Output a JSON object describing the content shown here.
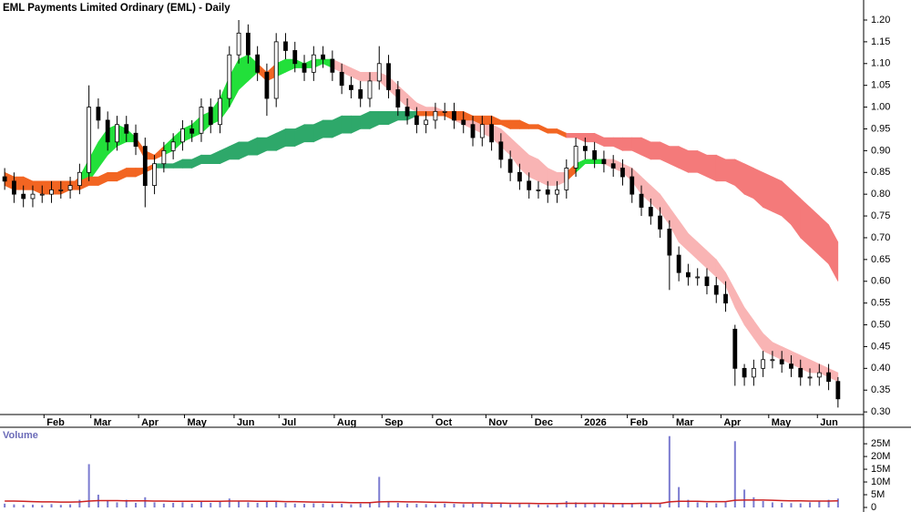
{
  "chart_data": {
    "type": "candlestick",
    "title": "EML Payments Limited Ordinary (EML) - Daily",
    "xlim": [
      -0.5,
      89.5
    ],
    "xticks": [
      {
        "value": 4.2,
        "label": "Feb"
      },
      {
        "value": 9.2,
        "label": "Mar"
      },
      {
        "value": 14.3,
        "label": "Apr"
      },
      {
        "value": 19.2,
        "label": "May"
      },
      {
        "value": 24.5,
        "label": "Jun"
      },
      {
        "value": 29.3,
        "label": "Jul"
      },
      {
        "value": 35.2,
        "label": "Aug"
      },
      {
        "value": 40.3,
        "label": "Sep"
      },
      {
        "value": 45.7,
        "label": "Oct"
      },
      {
        "value": 51.4,
        "label": "Nov"
      },
      {
        "value": 56.3,
        "label": "Dec"
      },
      {
        "value": 61.6,
        "label": "2026"
      },
      {
        "value": 66.5,
        "label": "Feb"
      },
      {
        "value": 71.4,
        "label": "Mar"
      },
      {
        "value": 76.5,
        "label": "Apr"
      },
      {
        "value": 81.6,
        "label": "May"
      },
      {
        "value": 86.8,
        "label": "Jun"
      }
    ],
    "ylim": [
      0.294,
      1.246
    ],
    "yticks": [
      {
        "value": 0.3,
        "label": "0.30"
      },
      {
        "value": 0.35,
        "label": "0.35"
      },
      {
        "value": 0.4,
        "label": "0.40"
      },
      {
        "value": 0.45,
        "label": "0.45"
      },
      {
        "value": 0.5,
        "label": "0.50"
      },
      {
        "value": 0.55,
        "label": "0.55"
      },
      {
        "value": 0.6,
        "label": "0.60"
      },
      {
        "value": 0.65,
        "label": "0.65"
      },
      {
        "value": 0.7,
        "label": "0.70"
      },
      {
        "value": 0.75,
        "label": "0.75"
      },
      {
        "value": 0.8,
        "label": "0.80"
      },
      {
        "value": 0.85,
        "label": "0.85"
      },
      {
        "value": 0.9,
        "label": "0.90"
      },
      {
        "value": 0.95,
        "label": "0.95"
      },
      {
        "value": 1.0,
        "label": "1.00"
      },
      {
        "value": 1.05,
        "label": "1.05"
      },
      {
        "value": 1.1,
        "label": "1.10"
      },
      {
        "value": 1.15,
        "label": "1.15"
      },
      {
        "value": 1.2,
        "label": "1.20"
      }
    ],
    "up_color": "#ffffff",
    "down_color": "#000000",
    "open": [
      0.84,
      0.83,
      0.8,
      0.79,
      0.8,
      0.8,
      0.81,
      0.81,
      0.82,
      0.85,
      1.0,
      0.97,
      0.92,
      0.96,
      0.94,
      0.91,
      0.82,
      0.87,
      0.9,
      0.92,
      0.95,
      0.94,
      1.0,
      0.96,
      1.02,
      1.12,
      1.17,
      1.12,
      1.08,
      1.02,
      1.15,
      1.13,
      1.1,
      1.08,
      1.12,
      1.11,
      1.08,
      1.05,
      1.04,
      1.02,
      1.06,
      1.1,
      1.04,
      1.0,
      0.98,
      0.96,
      0.97,
      0.99,
      0.99,
      0.97,
      0.96,
      0.93,
      0.96,
      0.92,
      0.88,
      0.85,
      0.83,
      0.81,
      0.81,
      0.8,
      0.81,
      0.86,
      0.91,
      0.9,
      0.88,
      0.87,
      0.86,
      0.84,
      0.8,
      0.77,
      0.75,
      0.72,
      0.66,
      0.62,
      0.61,
      0.61,
      0.59,
      0.57,
      0.49,
      0.4,
      0.38,
      0.4,
      0.42,
      0.42,
      0.41,
      0.4,
      0.38,
      0.38,
      0.39,
      0.37
    ],
    "high": [
      0.86,
      0.85,
      0.82,
      0.82,
      0.82,
      0.83,
      0.83,
      0.84,
      0.87,
      1.05,
      1.02,
      0.99,
      0.98,
      0.98,
      0.96,
      0.93,
      0.89,
      0.92,
      0.94,
      0.97,
      0.97,
      1.02,
      1.02,
      1.04,
      1.14,
      1.2,
      1.19,
      1.14,
      1.1,
      1.17,
      1.17,
      1.15,
      1.12,
      1.14,
      1.14,
      1.13,
      1.1,
      1.07,
      1.06,
      1.08,
      1.14,
      1.12,
      1.06,
      1.02,
      1.0,
      0.99,
      1.01,
      1.01,
      1.01,
      0.99,
      0.98,
      0.98,
      0.98,
      0.94,
      0.9,
      0.87,
      0.85,
      0.83,
      0.83,
      0.83,
      0.88,
      0.93,
      0.93,
      0.92,
      0.9,
      0.89,
      0.88,
      0.86,
      0.82,
      0.79,
      0.77,
      0.74,
      0.68,
      0.64,
      0.63,
      0.63,
      0.61,
      0.6,
      0.5,
      0.41,
      0.42,
      0.44,
      0.44,
      0.44,
      0.43,
      0.42,
      0.4,
      0.41,
      0.41,
      0.38
    ],
    "low": [
      0.81,
      0.78,
      0.77,
      0.77,
      0.78,
      0.78,
      0.79,
      0.79,
      0.8,
      0.83,
      0.95,
      0.9,
      0.9,
      0.92,
      0.89,
      0.77,
      0.8,
      0.85,
      0.88,
      0.9,
      0.92,
      0.92,
      0.94,
      0.94,
      1.0,
      1.1,
      1.1,
      1.06,
      0.98,
      1.0,
      1.11,
      1.08,
      1.06,
      1.06,
      1.09,
      1.06,
      1.03,
      1.02,
      1.0,
      1.0,
      1.04,
      1.02,
      0.98,
      0.96,
      0.94,
      0.94,
      0.95,
      0.97,
      0.95,
      0.94,
      0.91,
      0.91,
      0.9,
      0.86,
      0.83,
      0.81,
      0.79,
      0.79,
      0.78,
      0.78,
      0.79,
      0.84,
      0.88,
      0.86,
      0.85,
      0.84,
      0.82,
      0.78,
      0.75,
      0.73,
      0.7,
      0.58,
      0.6,
      0.59,
      0.59,
      0.57,
      0.55,
      0.53,
      0.36,
      0.36,
      0.36,
      0.38,
      0.4,
      0.39,
      0.38,
      0.36,
      0.36,
      0.36,
      0.35,
      0.31
    ],
    "close": [
      0.83,
      0.8,
      0.79,
      0.8,
      0.8,
      0.81,
      0.81,
      0.82,
      0.85,
      1.0,
      0.97,
      0.92,
      0.96,
      0.94,
      0.91,
      0.82,
      0.87,
      0.9,
      0.92,
      0.95,
      0.94,
      1.0,
      0.96,
      1.02,
      1.12,
      1.17,
      1.12,
      1.08,
      1.02,
      1.15,
      1.13,
      1.1,
      1.08,
      1.12,
      1.11,
      1.08,
      1.05,
      1.04,
      1.02,
      1.06,
      1.1,
      1.04,
      1.0,
      0.98,
      0.96,
      0.97,
      0.99,
      0.99,
      0.97,
      0.96,
      0.93,
      0.96,
      0.92,
      0.88,
      0.85,
      0.83,
      0.81,
      0.81,
      0.8,
      0.81,
      0.86,
      0.91,
      0.9,
      0.88,
      0.87,
      0.86,
      0.84,
      0.8,
      0.77,
      0.75,
      0.72,
      0.66,
      0.62,
      0.61,
      0.61,
      0.59,
      0.57,
      0.55,
      0.4,
      0.38,
      0.4,
      0.42,
      0.42,
      0.41,
      0.4,
      0.38,
      0.38,
      0.39,
      0.37,
      0.33
    ],
    "ribbons": [
      {
        "upper": [
          0.85,
          0.84,
          0.83,
          0.83,
          0.82,
          0.82,
          0.82,
          0.82,
          0.84,
          0.88,
          0.92,
          0.95,
          0.96,
          0.95,
          0.93,
          0.9,
          0.89,
          0.91,
          0.93,
          0.95,
          0.96,
          0.98,
          0.99,
          1.02,
          1.07,
          1.11,
          1.12,
          1.1,
          1.08,
          1.1,
          1.11,
          1.11,
          1.1,
          1.11,
          1.11,
          1.11,
          1.1,
          1.09,
          1.08,
          1.08,
          1.08,
          1.07,
          1.05,
          1.03,
          1.01,
          1.0,
          1.0,
          0.99,
          0.99,
          0.98,
          0.97,
          0.97,
          0.96,
          0.95,
          0.93,
          0.91,
          0.89,
          0.88,
          0.86,
          0.85,
          0.85,
          0.87,
          0.88,
          0.88,
          0.88,
          0.88,
          0.87,
          0.86,
          0.84,
          0.82,
          0.8,
          0.77,
          0.74,
          0.71,
          0.69,
          0.67,
          0.65,
          0.62,
          0.58,
          0.54,
          0.51,
          0.48,
          0.46,
          0.45,
          0.44,
          0.43,
          0.42,
          0.41,
          0.4,
          0.39
        ],
        "lower": [
          0.82,
          0.81,
          0.81,
          0.81,
          0.8,
          0.8,
          0.8,
          0.81,
          0.82,
          0.83,
          0.86,
          0.89,
          0.91,
          0.92,
          0.92,
          0.88,
          0.88,
          0.89,
          0.9,
          0.92,
          0.93,
          0.94,
          0.96,
          0.97,
          1.0,
          1.04,
          1.06,
          1.08,
          1.06,
          1.07,
          1.08,
          1.09,
          1.09,
          1.09,
          1.1,
          1.09,
          1.08,
          1.07,
          1.06,
          1.06,
          1.06,
          1.04,
          1.02,
          1.0,
          0.99,
          0.98,
          0.98,
          0.98,
          0.97,
          0.96,
          0.95,
          0.94,
          0.93,
          0.91,
          0.89,
          0.86,
          0.84,
          0.83,
          0.82,
          0.82,
          0.83,
          0.85,
          0.87,
          0.87,
          0.87,
          0.86,
          0.85,
          0.83,
          0.8,
          0.78,
          0.76,
          0.73,
          0.69,
          0.67,
          0.65,
          0.63,
          0.61,
          0.59,
          0.54,
          0.5,
          0.47,
          0.44,
          0.43,
          0.42,
          0.41,
          0.4,
          0.39,
          0.39,
          0.38,
          0.37
        ],
        "colors": [
          "#f26522",
          "#f26522",
          "#f26522",
          "#f26522",
          "#f26522",
          "#f26522",
          "#f26522",
          "#f26522",
          "#22e03a",
          "#22e03a",
          "#22e03a",
          "#22e03a",
          "#22e03a",
          "#22e03a",
          "#f26522",
          "#f26522",
          "#f26522",
          "#22e03a",
          "#22e03a",
          "#22e03a",
          "#22e03a",
          "#22e03a",
          "#22e03a",
          "#22e03a",
          "#22e03a",
          "#22e03a",
          "#22e03a",
          "#f26522",
          "#f26522",
          "#22e03a",
          "#22e03a",
          "#22e03a",
          "#22e03a",
          "#22e03a",
          "#22e03a",
          "#f9b4b4",
          "#f9b4b4",
          "#f9b4b4",
          "#f9b4b4",
          "#f9b4b4",
          "#f9b4b4",
          "#f9b4b4",
          "#f9b4b4",
          "#f9b4b4",
          "#f9b4b4",
          "#f9b4b4",
          "#f9b4b4",
          "#f9b4b4",
          "#f9b4b4",
          "#f9b4b4",
          "#f9b4b4",
          "#f9b4b4",
          "#f9b4b4",
          "#f9b4b4",
          "#f9b4b4",
          "#f9b4b4",
          "#f9b4b4",
          "#f9b4b4",
          "#f9b4b4",
          "#f9b4b4",
          "#f26522",
          "#22e03a",
          "#22e03a",
          "#22e03a",
          "#f9b4b4",
          "#f9b4b4",
          "#f9b4b4",
          "#f9b4b4",
          "#f9b4b4",
          "#f9b4b4",
          "#f9b4b4",
          "#f9b4b4",
          "#f9b4b4",
          "#f9b4b4",
          "#f9b4b4",
          "#f9b4b4",
          "#f9b4b4",
          "#f9b4b4",
          "#f9b4b4",
          "#f9b4b4",
          "#f9b4b4",
          "#f9b4b4",
          "#f9b4b4",
          "#f9b4b4",
          "#f9b4b4",
          "#f9b4b4",
          "#f9b4b4",
          "#f9b4b4",
          "#f9b4b4",
          "#f9b4b4"
        ]
      },
      {
        "upper": [
          0.85,
          0.84,
          0.84,
          0.83,
          0.83,
          0.83,
          0.83,
          0.83,
          0.83,
          0.84,
          0.84,
          0.85,
          0.85,
          0.86,
          0.86,
          0.86,
          0.87,
          0.87,
          0.87,
          0.88,
          0.88,
          0.89,
          0.89,
          0.9,
          0.91,
          0.92,
          0.92,
          0.93,
          0.93,
          0.94,
          0.95,
          0.95,
          0.96,
          0.96,
          0.97,
          0.97,
          0.98,
          0.98,
          0.98,
          0.99,
          0.99,
          0.99,
          0.99,
          0.99,
          0.99,
          0.99,
          0.99,
          0.99,
          0.99,
          0.99,
          0.98,
          0.98,
          0.98,
          0.97,
          0.97,
          0.97,
          0.96,
          0.96,
          0.95,
          0.95,
          0.94,
          0.94,
          0.94,
          0.94,
          0.93,
          0.93,
          0.93,
          0.93,
          0.93,
          0.92,
          0.92,
          0.91,
          0.91,
          0.9,
          0.9,
          0.89,
          0.89,
          0.88,
          0.88,
          0.87,
          0.86,
          0.85,
          0.84,
          0.83,
          0.81,
          0.79,
          0.77,
          0.75,
          0.73,
          0.69
        ],
        "lower": [
          0.82,
          0.82,
          0.81,
          0.81,
          0.81,
          0.81,
          0.81,
          0.81,
          0.81,
          0.82,
          0.82,
          0.83,
          0.83,
          0.84,
          0.84,
          0.85,
          0.86,
          0.86,
          0.86,
          0.86,
          0.86,
          0.87,
          0.87,
          0.87,
          0.88,
          0.88,
          0.89,
          0.89,
          0.9,
          0.9,
          0.91,
          0.91,
          0.92,
          0.92,
          0.93,
          0.93,
          0.94,
          0.94,
          0.95,
          0.95,
          0.96,
          0.96,
          0.97,
          0.97,
          0.98,
          0.98,
          0.98,
          0.98,
          0.97,
          0.97,
          0.97,
          0.96,
          0.96,
          0.96,
          0.95,
          0.95,
          0.95,
          0.95,
          0.94,
          0.94,
          0.93,
          0.93,
          0.92,
          0.92,
          0.91,
          0.91,
          0.9,
          0.9,
          0.89,
          0.88,
          0.88,
          0.87,
          0.86,
          0.85,
          0.85,
          0.84,
          0.83,
          0.83,
          0.82,
          0.8,
          0.79,
          0.77,
          0.76,
          0.75,
          0.73,
          0.7,
          0.68,
          0.66,
          0.64,
          0.6
        ],
        "colors": [
          "#f26522",
          "#f26522",
          "#f26522",
          "#f26522",
          "#f26522",
          "#f26522",
          "#f26522",
          "#f26522",
          "#f26522",
          "#f26522",
          "#f26522",
          "#f26522",
          "#f26522",
          "#f26522",
          "#f26522",
          "#f26522",
          "#2ea86a",
          "#2ea86a",
          "#2ea86a",
          "#2ea86a",
          "#2ea86a",
          "#2ea86a",
          "#2ea86a",
          "#2ea86a",
          "#2ea86a",
          "#2ea86a",
          "#2ea86a",
          "#2ea86a",
          "#2ea86a",
          "#2ea86a",
          "#2ea86a",
          "#2ea86a",
          "#2ea86a",
          "#2ea86a",
          "#2ea86a",
          "#2ea86a",
          "#2ea86a",
          "#2ea86a",
          "#2ea86a",
          "#2ea86a",
          "#2ea86a",
          "#2ea86a",
          "#2ea86a",
          "#2ea86a",
          "#f26522",
          "#f26522",
          "#f26522",
          "#f26522",
          "#f26522",
          "#f26522",
          "#f26522",
          "#f26522",
          "#f26522",
          "#f26522",
          "#f26522",
          "#f26522",
          "#f26522",
          "#f26522",
          "#f26522",
          "#f26522",
          "#f47a7a",
          "#f47a7a",
          "#f47a7a",
          "#f47a7a",
          "#f47a7a",
          "#f47a7a",
          "#f47a7a",
          "#f47a7a",
          "#f47a7a",
          "#f47a7a",
          "#f47a7a",
          "#f47a7a",
          "#f47a7a",
          "#f47a7a",
          "#f47a7a",
          "#f47a7a",
          "#f47a7a",
          "#f47a7a",
          "#f47a7a",
          "#f47a7a",
          "#f47a7a",
          "#f47a7a",
          "#f47a7a",
          "#f47a7a",
          "#f47a7a",
          "#f47a7a",
          "#f47a7a",
          "#f47a7a",
          "#f47a7a",
          "#f47a7a"
        ]
      }
    ],
    "volume_label": "Volume",
    "volume_color": "#7b7bd0",
    "volume_average_color": "#cc2222",
    "volume_ylim": [
      0,
      30400000
    ],
    "volume_ticks": [
      0,
      {
        "value": 5000000,
        "label": "5M"
      },
      {
        "value": 10000000,
        "label": "10M"
      },
      {
        "value": 15000000,
        "label": "15M"
      },
      {
        "value": 20000000,
        "label": "20M"
      },
      {
        "value": 25000000,
        "label": "25M"
      }
    ],
    "volume": [
      1500000,
      1200000,
      1000000,
      1100000,
      900000,
      1300000,
      1000000,
      1200000,
      3000000,
      17000000,
      5000000,
      2500000,
      2000000,
      3000000,
      1800000,
      4000000,
      2000000,
      1500000,
      1800000,
      2000000,
      1500000,
      2500000,
      1800000,
      2200000,
      3500000,
      2500000,
      2000000,
      1800000,
      2500000,
      2200000,
      1800000,
      1500000,
      1400000,
      1600000,
      1500000,
      1300000,
      1400000,
      1200000,
      1500000,
      2000000,
      12000000,
      2500000,
      1800000,
      1500000,
      1400000,
      1300000,
      1200000,
      1500000,
      1400000,
      1300000,
      1500000,
      2000000,
      1800000,
      1500000,
      1200000,
      1400000,
      1300000,
      1100000,
      1000000,
      1200000,
      2500000,
      2000000,
      1500000,
      1400000,
      1300000,
      1200000,
      1500000,
      1800000,
      1600000,
      1500000,
      1800000,
      28000000,
      8000000,
      3000000,
      2000000,
      1800000,
      1600000,
      2000000,
      26000000,
      7000000,
      4000000,
      2500000,
      2000000,
      1800000,
      1700000,
      1600000,
      2000000,
      2500000,
      3000000,
      3500000
    ],
    "volume_average": [
      2500000,
      2500000,
      2400000,
      2300000,
      2200000,
      2200000,
      2100000,
      2100000,
      2200000,
      2500000,
      2700000,
      2700000,
      2700000,
      2600000,
      2600000,
      2600000,
      2500000,
      2500000,
      2400000,
      2400000,
      2400000,
      2400000,
      2400000,
      2400000,
      2500000,
      2500000,
      2500000,
      2400000,
      2400000,
      2400000,
      2300000,
      2300000,
      2200000,
      2100000,
      2100000,
      2000000,
      2000000,
      1900000,
      1900000,
      1900000,
      2200000,
      2300000,
      2300000,
      2200000,
      2200000,
      2100000,
      2000000,
      2000000,
      1900000,
      1800000,
      1800000,
      1800000,
      1700000,
      1700000,
      1600000,
      1600000,
      1600000,
      1500000,
      1500000,
      1500000,
      1600000,
      1600000,
      1600000,
      1600000,
      1600000,
      1500000,
      1500000,
      1500000,
      1600000,
      1600000,
      1600000,
      2200000,
      2400000,
      2400000,
      2400000,
      2300000,
      2300000,
      2300000,
      2800000,
      2900000,
      2900000,
      2900000,
      2800000,
      2700000,
      2600000,
      2600000,
      2500000,
      2500000,
      2500000,
      2600000
    ]
  }
}
